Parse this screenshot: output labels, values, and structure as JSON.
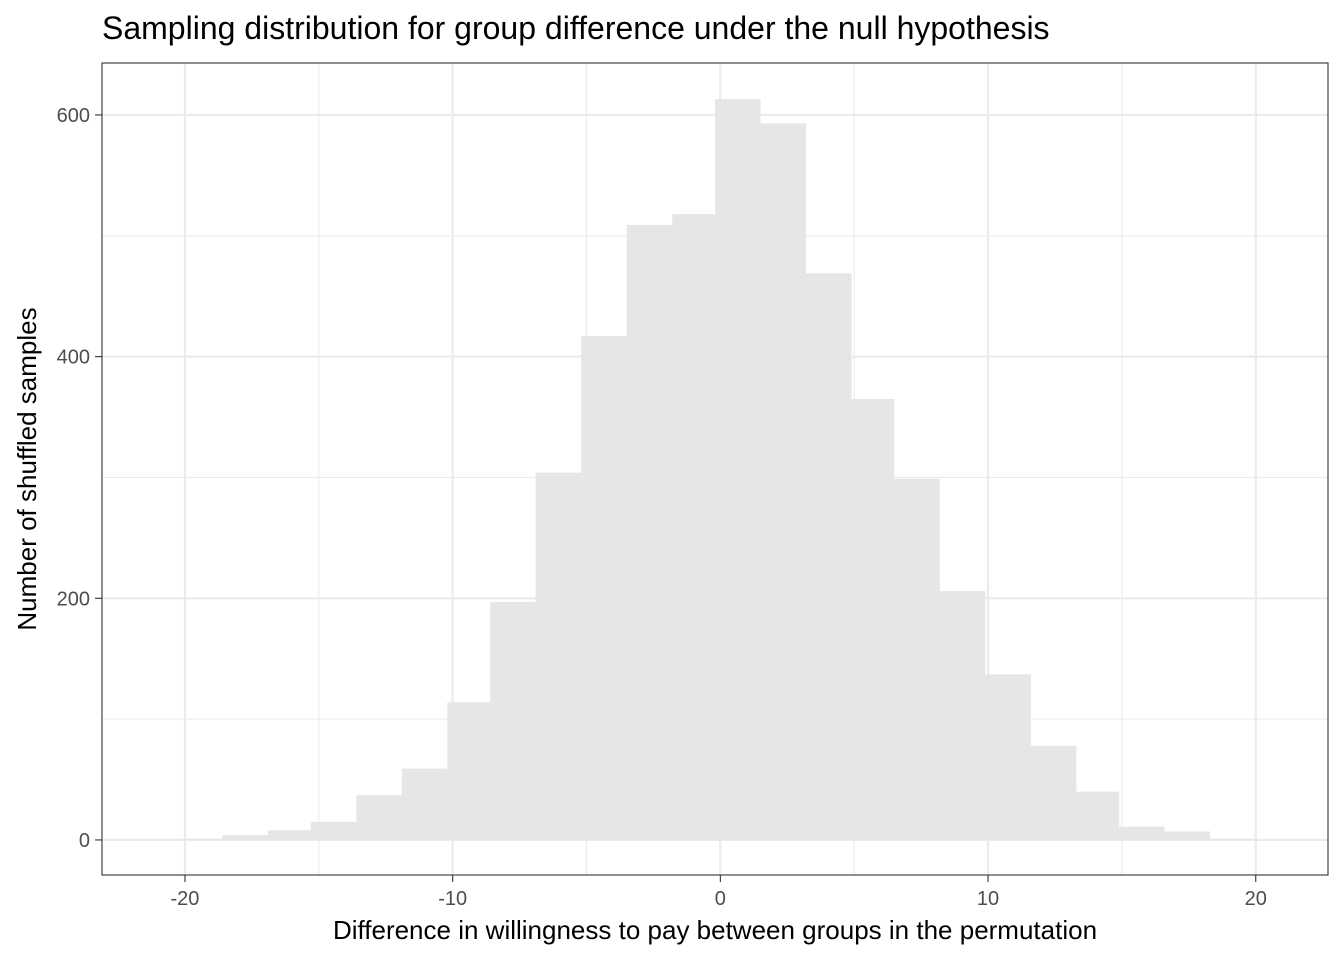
{
  "chart_data": {
    "type": "bar",
    "title": "Sampling distribution for group difference under the null hypothesis",
    "xlabel": "Difference in willingness to pay between groups in the permutation",
    "ylabel": "Number of shuffled samples",
    "xlim": [
      -23.1,
      22.7
    ],
    "ylim": [
      -29,
      643
    ],
    "x_ticks": [
      -20,
      -10,
      0,
      10,
      20
    ],
    "x_tick_labels": [
      "-20",
      "-10",
      "0",
      "10",
      "20"
    ],
    "y_ticks": [
      0,
      200,
      400,
      600
    ],
    "y_tick_labels": [
      "0",
      "200",
      "400",
      "600"
    ],
    "x_minor_ticks": [
      -15,
      -5,
      5,
      15
    ],
    "y_minor_ticks": [
      100,
      300,
      500
    ],
    "grid": true,
    "bar_color": "#e6e6e6",
    "bins": [
      {
        "x0": -20.3,
        "x1": -18.6,
        "count": 1
      },
      {
        "x0": -18.6,
        "x1": -16.9,
        "count": 4
      },
      {
        "x0": -16.9,
        "x1": -15.3,
        "count": 8
      },
      {
        "x0": -15.3,
        "x1": -13.6,
        "count": 15
      },
      {
        "x0": -13.6,
        "x1": -11.9,
        "count": 37
      },
      {
        "x0": -11.9,
        "x1": -10.2,
        "count": 59
      },
      {
        "x0": -10.2,
        "x1": -8.6,
        "count": 114
      },
      {
        "x0": -8.6,
        "x1": -6.9,
        "count": 197
      },
      {
        "x0": -6.9,
        "x1": -5.2,
        "count": 304
      },
      {
        "x0": -5.2,
        "x1": -3.5,
        "count": 417
      },
      {
        "x0": -3.5,
        "x1": -1.8,
        "count": 509
      },
      {
        "x0": -1.8,
        "x1": -0.2,
        "count": 518
      },
      {
        "x0": -0.2,
        "x1": 1.5,
        "count": 613
      },
      {
        "x0": 1.5,
        "x1": 3.2,
        "count": 593
      },
      {
        "x0": 3.2,
        "x1": 4.9,
        "count": 469
      },
      {
        "x0": 4.9,
        "x1": 6.5,
        "count": 365
      },
      {
        "x0": 6.5,
        "x1": 8.2,
        "count": 299
      },
      {
        "x0": 8.2,
        "x1": 9.9,
        "count": 206
      },
      {
        "x0": 9.9,
        "x1": 11.6,
        "count": 137
      },
      {
        "x0": 11.6,
        "x1": 13.3,
        "count": 78
      },
      {
        "x0": 13.3,
        "x1": 14.9,
        "count": 40
      },
      {
        "x0": 14.9,
        "x1": 16.6,
        "count": 11
      },
      {
        "x0": 16.6,
        "x1": 18.3,
        "count": 7
      },
      {
        "x0": 18.3,
        "x1": 20.0,
        "count": 1
      }
    ]
  }
}
